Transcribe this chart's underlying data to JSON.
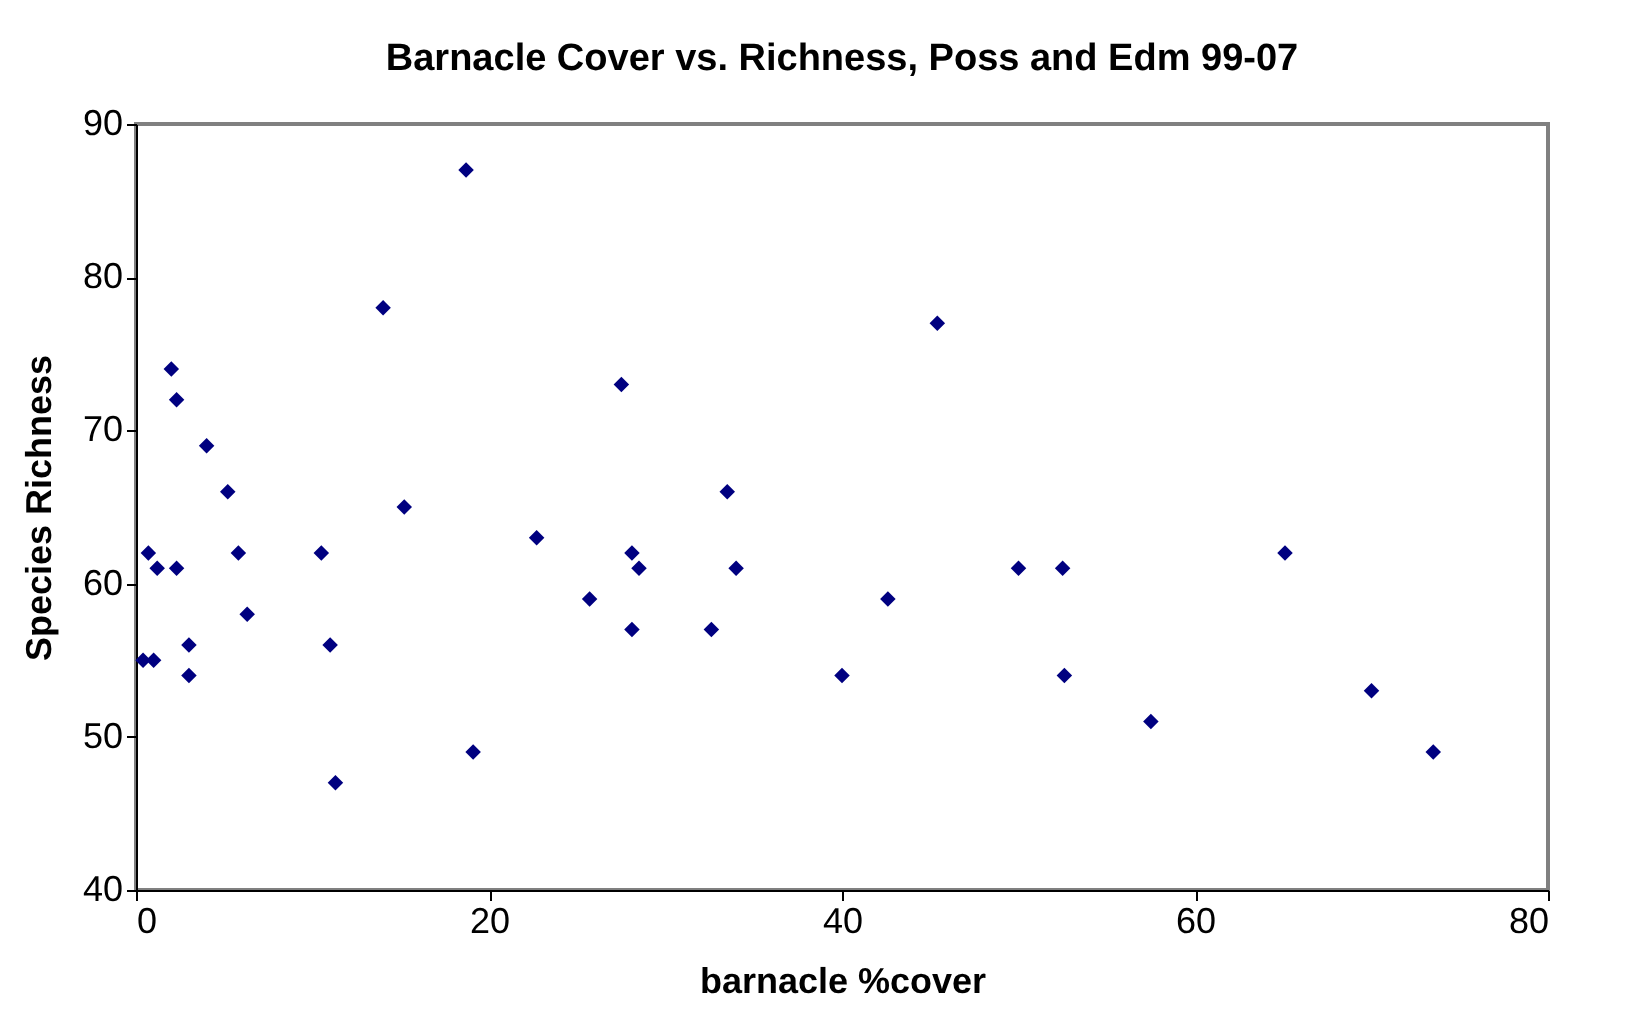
{
  "chart_data": {
    "type": "scatter",
    "title": "Barnacle Cover vs. Richness, Poss and Edm 99-07",
    "xlabel": "barnacle %cover",
    "ylabel": "Species Richness",
    "x": [
      0.7,
      1.2,
      0.4,
      1.0,
      2.0,
      2.3,
      2.3,
      3.0,
      3.0,
      4.0,
      5.2,
      5.8,
      6.3,
      10.5,
      11.0,
      11.3,
      14.0,
      15.2,
      18.7,
      19.1,
      22.7,
      25.7,
      27.5,
      28.1,
      28.1,
      28.5,
      32.6,
      33.5,
      34.0,
      40.0,
      42.6,
      45.4,
      50.0,
      52.5,
      52.6,
      57.5,
      65.1,
      70.0,
      73.5
    ],
    "values": [
      62,
      61,
      55,
      55,
      74,
      72,
      61,
      56,
      54,
      69,
      66,
      62,
      58,
      62,
      56,
      47,
      78,
      65,
      87,
      49,
      63,
      59,
      73,
      62,
      57,
      61,
      57,
      66,
      61,
      54,
      59,
      77,
      61,
      61,
      54,
      51,
      62,
      53,
      49
    ],
    "color": "#000080",
    "marker": "diamond",
    "xlim": [
      0,
      80
    ],
    "xticks": [
      0,
      20,
      40,
      60,
      80
    ],
    "ylim": [
      40,
      90
    ],
    "yticks": [
      40,
      50,
      60,
      70,
      80,
      90
    ],
    "grid": false
  }
}
